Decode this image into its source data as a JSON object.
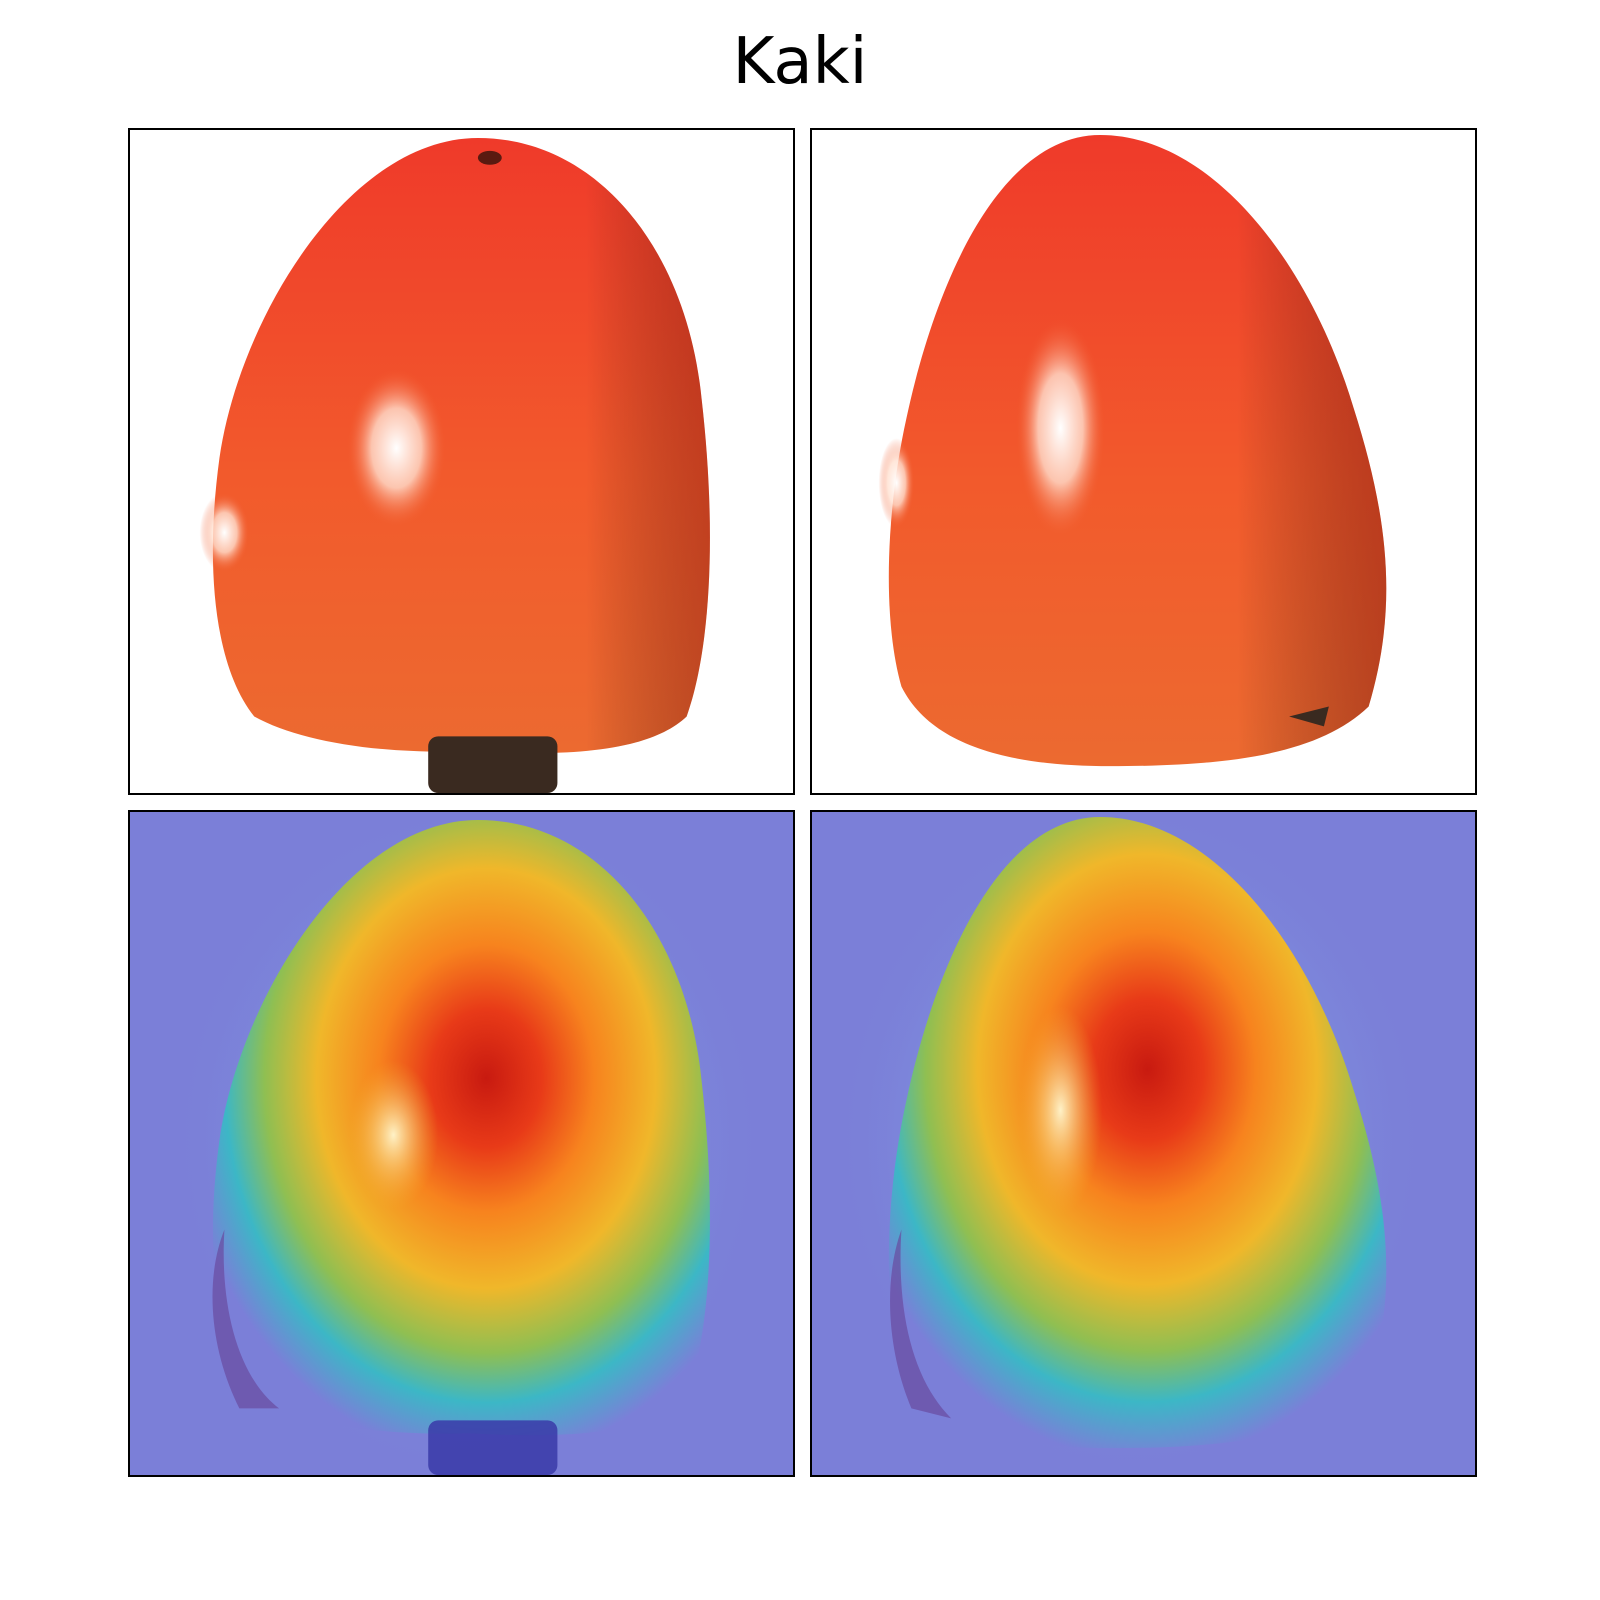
{
  "figure": {
    "title": "Kaki",
    "panels": [
      {
        "row": "top",
        "column": "left",
        "content": "photo"
      },
      {
        "row": "top",
        "column": "right",
        "content": "photo"
      },
      {
        "row": "bottom",
        "column": "left",
        "content": "heatmap-overlay"
      },
      {
        "row": "bottom",
        "column": "right",
        "content": "heatmap-overlay"
      }
    ],
    "colors": {
      "fruit_top": "#f0352a",
      "fruit_bottom": "#f26a2e",
      "heat_background": "#7b7fd8",
      "heat_hot": "#c81a10",
      "heat_warm": "#f7a820",
      "heat_cool": "#35c0b5"
    }
  }
}
